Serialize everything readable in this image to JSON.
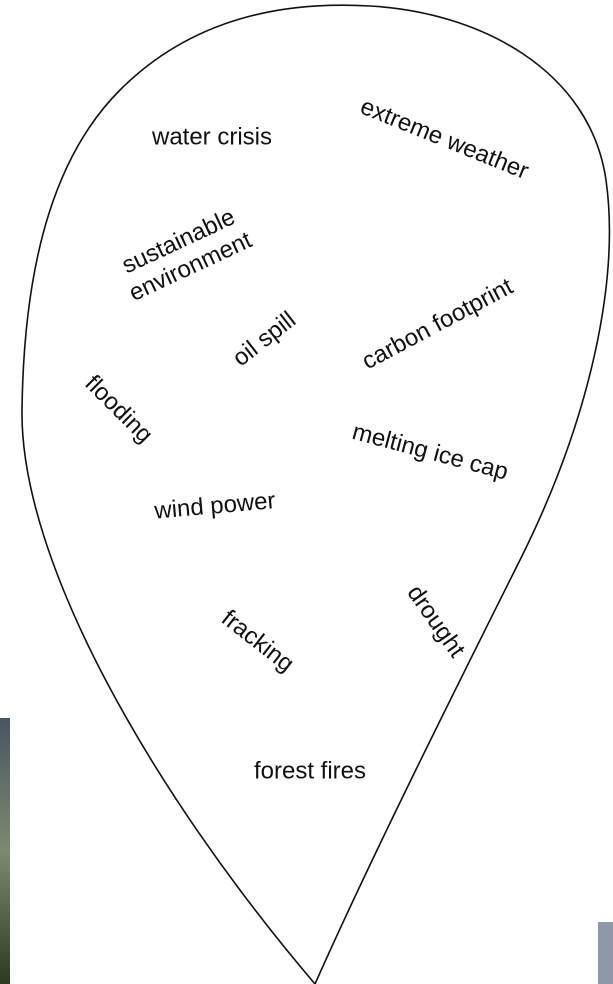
{
  "words": [
    {
      "lines": [
        "water crisis"
      ]
    },
    {
      "lines": [
        "extreme weather"
      ]
    },
    {
      "lines": [
        "sustainable",
        "environment"
      ]
    },
    {
      "lines": [
        "oil spill"
      ]
    },
    {
      "lines": [
        "carbon footprint"
      ]
    },
    {
      "lines": [
        "flooding"
      ]
    },
    {
      "lines": [
        "melting ice cap"
      ]
    },
    {
      "lines": [
        "wind power"
      ]
    },
    {
      "lines": [
        "fracking"
      ]
    },
    {
      "lines": [
        "drought"
      ]
    },
    {
      "lines": [
        "forest fires"
      ]
    }
  ]
}
